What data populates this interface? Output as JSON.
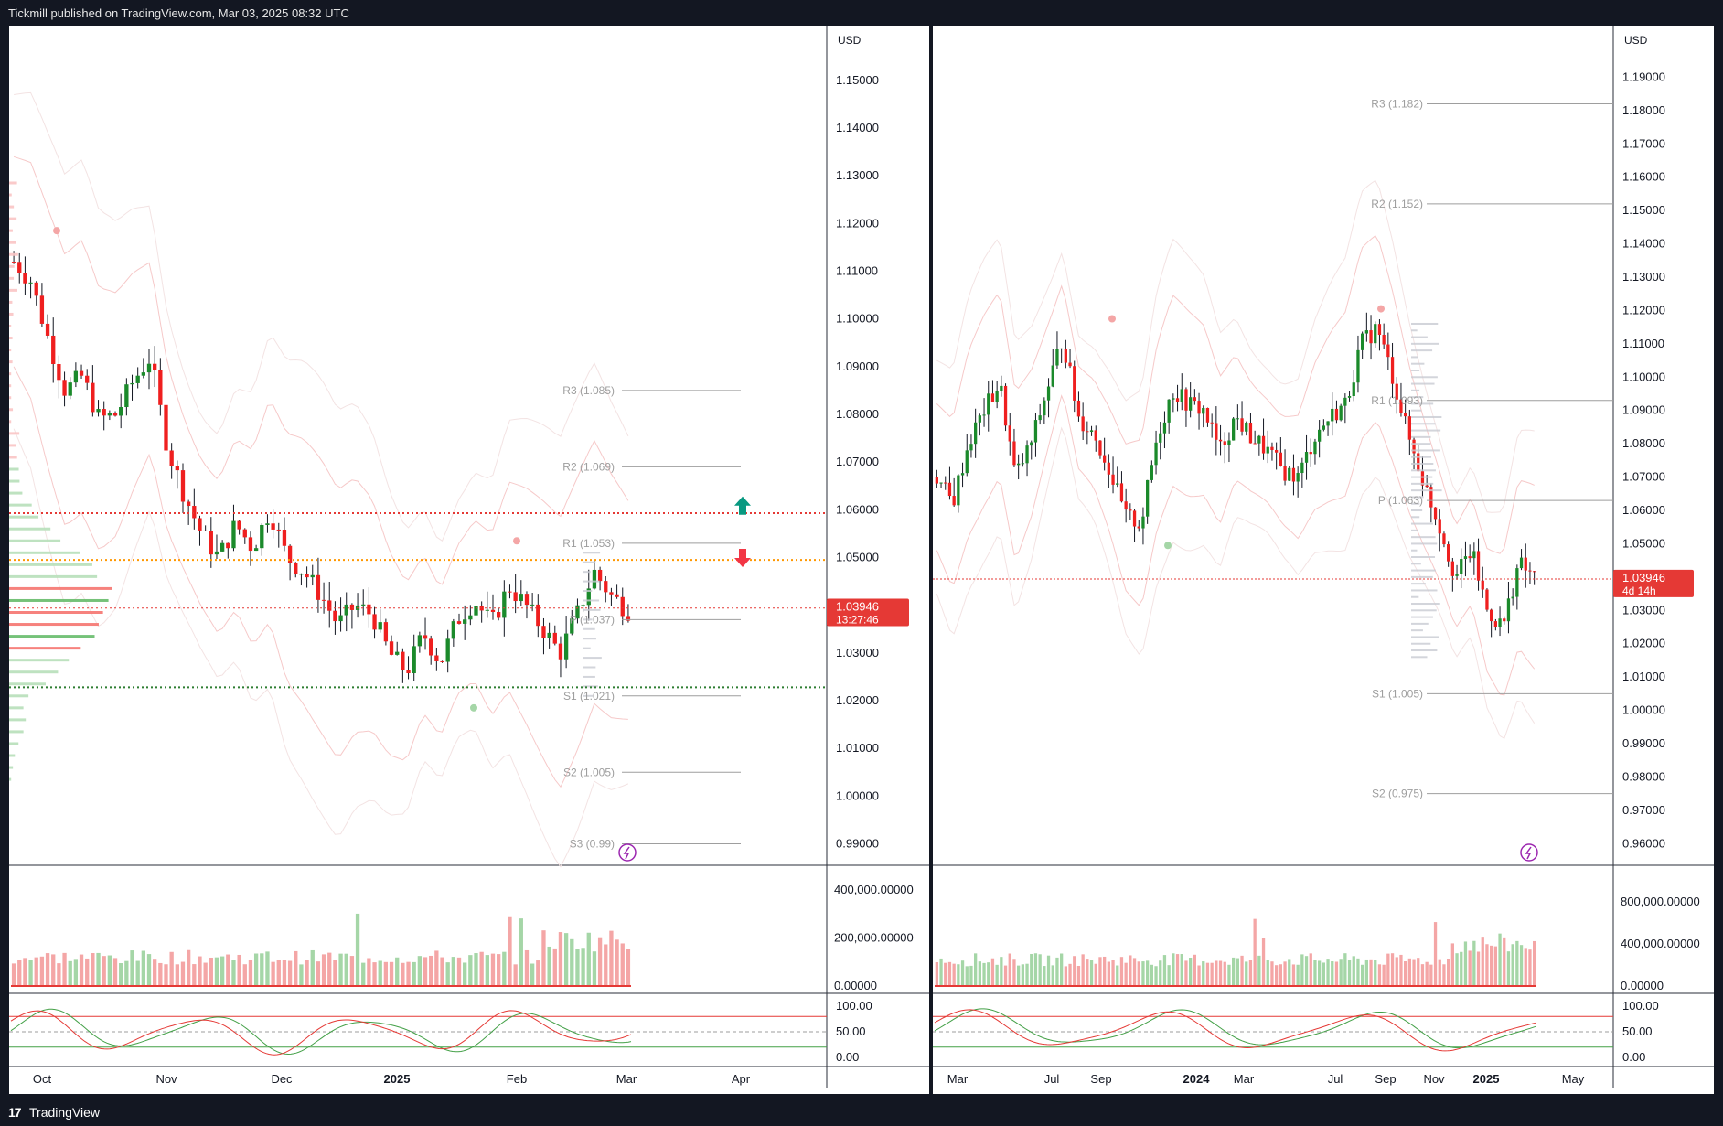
{
  "header": {
    "publisher_text": "Tickmill published on TradingView.com, Mar 03, 2025 08:32 UTC"
  },
  "footer": {
    "logo_glyph": "17",
    "brand": "TradingView"
  },
  "colors": {
    "up": "#089981",
    "down": "#f23645",
    "bull_candle": "#1b8a2b",
    "bear_candle": "#ef1f1f",
    "pivot_line": "#9e9e9e",
    "level_red": "#e53935",
    "level_orange": "#ff9800",
    "level_green": "#2e7d32"
  },
  "chart_data": [
    {
      "type": "candlestick",
      "panel": "left",
      "currency": "USD",
      "x_ticks": [
        "Oct",
        "Nov",
        "Dec",
        "2025",
        "Feb",
        "Mar",
        "Apr"
      ],
      "y_ticks": [
        "1.15000",
        "1.14000",
        "1.13000",
        "1.12000",
        "1.11000",
        "1.10000",
        "1.09000",
        "1.08000",
        "1.07000",
        "1.06000",
        "1.05000",
        "1.04000",
        "1.03000",
        "1.02000",
        "1.01000",
        "1.00000",
        "0.99000"
      ],
      "ylim": [
        0.9855,
        1.1538
      ],
      "last_price": "1.03946",
      "countdown": "13:27:46",
      "pivots": [
        {
          "label": "R3 (1.085)",
          "value": 1.085
        },
        {
          "label": "R2 (1.069)",
          "value": 1.069
        },
        {
          "label": "R1 (1.053)",
          "value": 1.053
        },
        {
          "label": "P (1.037)",
          "value": 1.037
        },
        {
          "label": "S1 (1.021)",
          "value": 1.021
        },
        {
          "label": "S2 (1.005)",
          "value": 1.005
        },
        {
          "label": "S3 (0.99)",
          "value": 0.99
        }
      ],
      "horizontal_levels": [
        {
          "value": 1.0593,
          "style": "red-dotted"
        },
        {
          "value": 1.0495,
          "style": "orange-dotted"
        },
        {
          "value": 1.0394,
          "style": "red-dotted-thin"
        },
        {
          "value": 1.0228,
          "style": "green-dotted"
        }
      ],
      "signals": [
        {
          "direction": "up",
          "value": 1.0605
        },
        {
          "direction": "down",
          "value": 1.0503
        }
      ],
      "volume": {
        "y_ticks": [
          "400,000.00000",
          "200,000.00000",
          "0.00000"
        ],
        "ylim": [
          0,
          420000
        ]
      },
      "stochastic": {
        "y_ticks": [
          "100.00",
          "50.00",
          "0.00"
        ],
        "upper": 80,
        "lower": 20
      },
      "candle_waypoints": [
        1.112,
        1.108,
        1.096,
        1.085,
        1.088,
        1.079,
        1.08,
        1.087,
        1.092,
        1.073,
        1.063,
        1.055,
        1.05,
        1.057,
        1.052,
        1.06,
        1.05,
        1.047,
        1.042,
        1.036,
        1.04,
        1.038,
        1.03,
        1.026,
        1.034,
        1.028,
        1.037,
        1.041,
        1.036,
        1.044,
        1.04,
        1.035,
        1.03,
        1.038,
        1.047,
        1.042,
        1.039
      ]
    },
    {
      "type": "candlestick",
      "panel": "right",
      "currency": "USD",
      "x_ticks": [
        "Mar",
        "Jul",
        "Sep",
        "2024",
        "Mar",
        "Jul",
        "Sep",
        "Nov",
        "2025",
        "May"
      ],
      "y_ticks": [
        "1.19000",
        "1.18000",
        "1.17000",
        "1.16000",
        "1.15000",
        "1.14000",
        "1.13000",
        "1.12000",
        "1.11000",
        "1.10000",
        "1.09000",
        "1.08000",
        "1.07000",
        "1.06000",
        "1.05000",
        "1.04000",
        "1.03000",
        "1.02000",
        "1.01000",
        "1.00000",
        "0.99000",
        "0.98000",
        "0.97000",
        "0.96000"
      ],
      "ylim": [
        0.9535,
        1.1945
      ],
      "last_price": "1.03946",
      "countdown": "4d 14h",
      "pivots": [
        {
          "label": "R3 (1.182)",
          "value": 1.182
        },
        {
          "label": "R2 (1.152)",
          "value": 1.152
        },
        {
          "label": "R1 (1.093)",
          "value": 1.093
        },
        {
          "label": "P (1.063)",
          "value": 1.063
        },
        {
          "label": "S1 (1.005)",
          "value": 1.005
        },
        {
          "label": "S2 (0.975)",
          "value": 0.975
        }
      ],
      "volume": {
        "y_ticks": [
          "800,000.00000",
          "400,000.00000",
          "0.00000"
        ],
        "ylim": [
          0,
          1000000
        ]
      },
      "stochastic": {
        "y_ticks": [
          "100.00",
          "50.00",
          "0.00"
        ],
        "upper": 80,
        "lower": 20
      },
      "candle_waypoints": [
        1.07,
        1.062,
        1.08,
        1.09,
        1.098,
        1.07,
        1.08,
        1.096,
        1.112,
        1.088,
        1.083,
        1.072,
        1.058,
        1.056,
        1.082,
        1.096,
        1.092,
        1.09,
        1.078,
        1.088,
        1.082,
        1.078,
        1.072,
        1.07,
        1.082,
        1.088,
        1.092,
        1.11,
        1.115,
        1.1,
        1.082,
        1.068,
        1.055,
        1.04,
        1.048,
        1.03,
        1.025,
        1.044,
        1.04
      ]
    }
  ]
}
